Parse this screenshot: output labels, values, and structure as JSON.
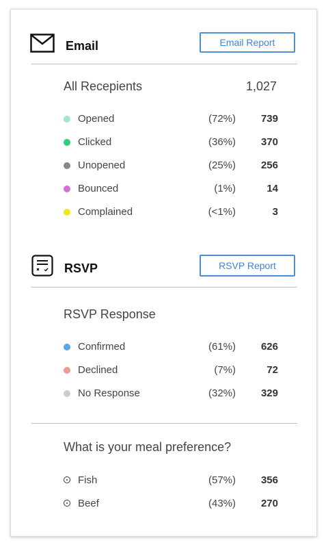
{
  "email": {
    "title": "Email",
    "report_button": "Email Report",
    "total_label": "All Recepients",
    "total_value": "1,027",
    "rows": [
      {
        "label": "Opened",
        "percent": "(72%)",
        "count": "739",
        "color": "#9de8c6"
      },
      {
        "label": "Clicked",
        "percent": "(36%)",
        "count": "370",
        "color": "#2fcf7e"
      },
      {
        "label": "Unopened",
        "percent": "(25%)",
        "count": "256",
        "color": "#888888"
      },
      {
        "label": "Bounced",
        "percent": "(1%)",
        "count": "14",
        "color": "#d370d9"
      },
      {
        "label": "Complained",
        "percent": "(<1%)",
        "count": "3",
        "color": "#f2e519"
      }
    ]
  },
  "rsvp": {
    "title": "RSVP",
    "report_button": "RSVP Report",
    "total_label": "RSVP Response",
    "rows": [
      {
        "label": "Confirmed",
        "percent": "(61%)",
        "count": "626",
        "color": "#56a6ee"
      },
      {
        "label": "Declined",
        "percent": "(7%)",
        "count": "72",
        "color": "#f09a90"
      },
      {
        "label": "No Response",
        "percent": "(32%)",
        "count": "329",
        "color": "#cccccc"
      }
    ]
  },
  "meal": {
    "question": "What is your meal preference?",
    "rows": [
      {
        "label": "Fish",
        "percent": "(57%)",
        "count": "356"
      },
      {
        "label": "Beef",
        "percent": "(43%)",
        "count": "270"
      }
    ]
  }
}
